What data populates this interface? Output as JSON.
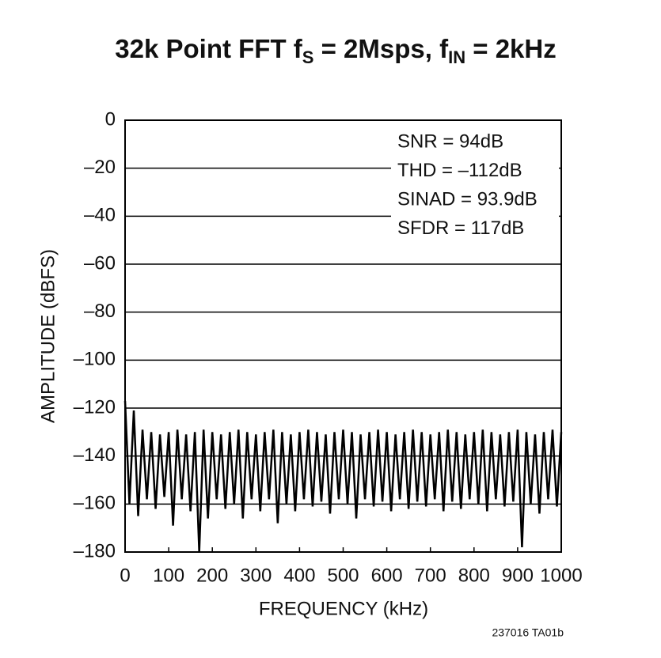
{
  "chart_data": {
    "type": "line",
    "title": [
      "32k Point FFT f",
      "S",
      " = 2Msps, f",
      "IN",
      " = 2kHz"
    ],
    "x_label": "FREQUENCY (kHz)",
    "y_label": "AMPLITUDE (dBFS)",
    "annotations": [
      "SNR = 94dB",
      "THD = –112dB",
      "SINAD = 93.9dB",
      "SFDR = 117dB"
    ],
    "footnote": "237016 TA01b",
    "xlim": [
      0,
      1000
    ],
    "xticks": [
      0,
      100,
      200,
      300,
      400,
      500,
      600,
      700,
      800,
      900,
      1000
    ],
    "ylim": [
      -180,
      0
    ],
    "yticks": [
      {
        "value": -180,
        "label": "–180"
      },
      {
        "value": -160,
        "label": "–160"
      },
      {
        "value": -140,
        "label": "–140"
      },
      {
        "value": -120,
        "label": "–120"
      },
      {
        "value": -100,
        "label": "–100"
      },
      {
        "value": -80,
        "label": "–80"
      },
      {
        "value": -60,
        "label": "–60"
      },
      {
        "value": -40,
        "label": "–40"
      },
      {
        "value": -20,
        "label": "–20"
      },
      0
    ],
    "grid": true,
    "color": "#000000",
    "x": [
      0,
      10,
      20,
      30,
      40,
      50,
      60,
      70,
      80,
      90,
      100,
      110,
      120,
      130,
      140,
      150,
      160,
      170,
      180,
      190,
      200,
      210,
      220,
      230,
      240,
      250,
      260,
      270,
      280,
      290,
      300,
      310,
      320,
      330,
      340,
      350,
      360,
      370,
      380,
      390,
      400,
      410,
      420,
      430,
      440,
      450,
      460,
      470,
      480,
      490,
      500,
      510,
      520,
      530,
      540,
      550,
      560,
      570,
      580,
      590,
      600,
      610,
      620,
      630,
      640,
      650,
      660,
      670,
      680,
      690,
      700,
      710,
      720,
      730,
      740,
      750,
      760,
      770,
      780,
      790,
      800,
      810,
      820,
      830,
      840,
      850,
      860,
      870,
      880,
      890,
      900,
      910,
      920,
      930,
      940,
      950,
      960,
      970,
      980,
      990,
      1000
    ],
    "values": [
      -117,
      -160,
      -121,
      -165,
      -129,
      -158,
      -130,
      -162,
      -131,
      -157,
      -130,
      -169,
      -129,
      -158,
      -131,
      -163,
      -130,
      -180,
      -129,
      -166,
      -130,
      -158,
      -131,
      -162,
      -130,
      -160,
      -129,
      -166,
      -130,
      -158,
      -131,
      -163,
      -130,
      -158,
      -129,
      -168,
      -130,
      -160,
      -131,
      -163,
      -130,
      -158,
      -129,
      -161,
      -130,
      -159,
      -131,
      -164,
      -130,
      -158,
      -129,
      -160,
      -130,
      -166,
      -131,
      -158,
      -130,
      -161,
      -129,
      -159,
      -130,
      -163,
      -131,
      -158,
      -130,
      -162,
      -129,
      -159,
      -130,
      -161,
      -131,
      -158,
      -130,
      -163,
      -129,
      -159,
      -130,
      -162,
      -131,
      -158,
      -130,
      -160,
      -129,
      -163,
      -130,
      -158,
      -131,
      -161,
      -130,
      -159,
      -129,
      -178,
      -130,
      -160,
      -131,
      -164,
      -130,
      -158,
      -129,
      -161,
      -130
    ]
  }
}
